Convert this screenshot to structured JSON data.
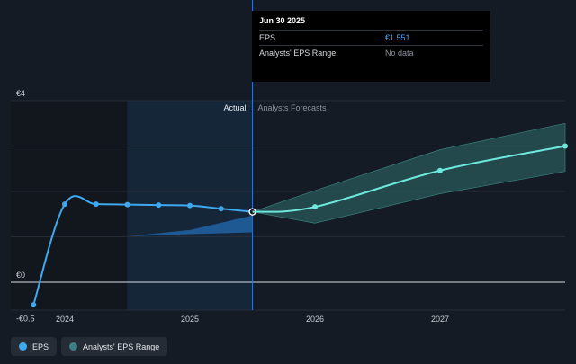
{
  "chart_data": {
    "type": "line",
    "x_ticks": [
      "2024",
      "2025",
      "2026",
      "2027"
    ],
    "y_ticks": [
      {
        "value": 4,
        "label": "€4"
      },
      {
        "value": 0,
        "label": "€0"
      },
      {
        "value": -0.5,
        "label": "-€0.5"
      }
    ],
    "ylim": [
      -0.5,
      4
    ],
    "grid": true,
    "region_labels": {
      "actual": "Actual",
      "forecast": "Analysts Forecasts"
    },
    "series": [
      {
        "name": "EPS",
        "color": "#3fa8ef",
        "points": [
          {
            "x": 2023.75,
            "y": -0.5
          },
          {
            "x": 2024.0,
            "y": 1.72
          },
          {
            "x": 2024.25,
            "y": 1.72
          },
          {
            "x": 2024.5,
            "y": 1.71
          },
          {
            "x": 2024.75,
            "y": 1.7
          },
          {
            "x": 2025.0,
            "y": 1.69
          },
          {
            "x": 2025.25,
            "y": 1.62
          },
          {
            "x": 2025.5,
            "y": 1.551
          }
        ]
      },
      {
        "name": "EPS",
        "color": "#6ee8dc",
        "points": [
          {
            "x": 2025.5,
            "y": 1.551
          },
          {
            "x": 2026.0,
            "y": 1.66
          },
          {
            "x": 2027.0,
            "y": 2.46
          },
          {
            "x": 2028.0,
            "y": 3.0
          }
        ]
      }
    ],
    "ranges": [
      {
        "name": "Analysts' EPS Range",
        "color": "#2f6f6d",
        "points": [
          {
            "x": 2025.5,
            "low": 1.551,
            "high": 1.551
          },
          {
            "x": 2026.0,
            "low": 1.3,
            "high": 2.02
          },
          {
            "x": 2027.0,
            "low": 1.95,
            "high": 2.92
          },
          {
            "x": 2028.0,
            "low": 2.44,
            "high": 3.5
          }
        ]
      },
      {
        "name": "Analysts' EPS Range",
        "color": "#1f5f9e",
        "points": [
          {
            "x": 2024.5,
            "low": 1.01,
            "high": 1.01
          },
          {
            "x": 2025.0,
            "low": 1.06,
            "high": 1.15
          },
          {
            "x": 2025.5,
            "low": 1.1,
            "high": 1.47
          }
        ]
      }
    ],
    "actual_forecast_split": 2025.5,
    "highlight_start": 2024.5
  },
  "tooltip": {
    "date": "Jun 30 2025",
    "rows": [
      {
        "label": "EPS",
        "value": "€1.551"
      },
      {
        "label": "Analysts' EPS Range",
        "value": "No data"
      }
    ]
  },
  "legend": {
    "eps": "EPS",
    "range": "Analysts' EPS Range"
  }
}
